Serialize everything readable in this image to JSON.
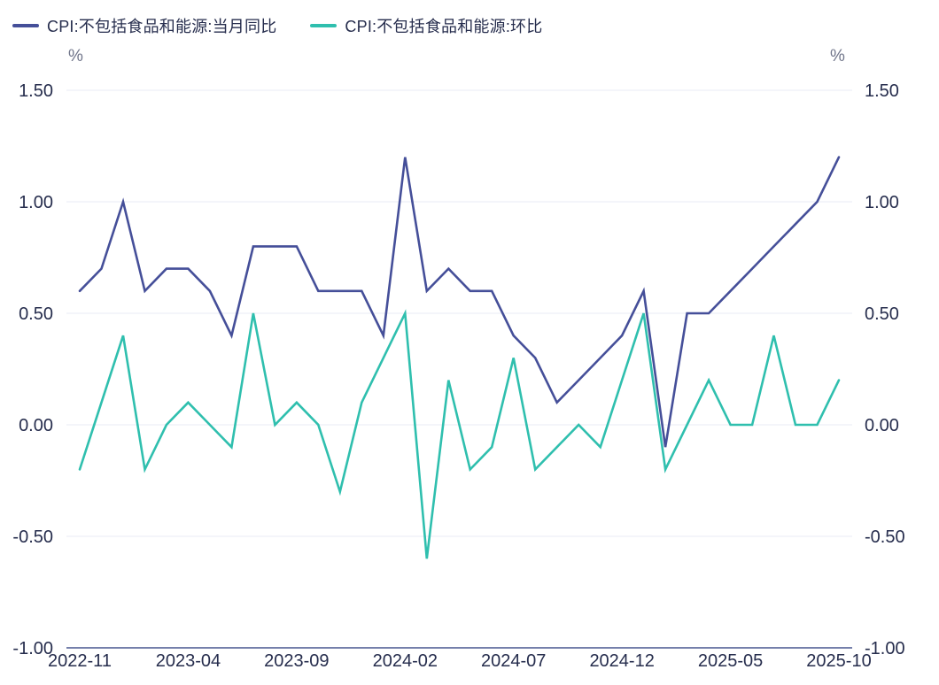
{
  "legend": {
    "items": [
      {
        "label": "CPI:不包括食品和能源:当月同比",
        "color": "#454F99"
      },
      {
        "label": "CPI:不包括食品和能源:环比",
        "color": "#2FBFAE"
      }
    ]
  },
  "y_axis": {
    "unit_left": "%",
    "unit_right": "%"
  },
  "colors": {
    "grid": "#E9EBF4",
    "axis_line": "#7580AB",
    "tick_text": "#262D4D"
  },
  "chart_data": {
    "type": "line",
    "title": "",
    "unit": "%",
    "grid": "horizontal",
    "legend_position": "top-left",
    "ylim": [
      -1.0,
      1.5
    ],
    "y_ticks": [
      1.5,
      1.0,
      0.5,
      0.0,
      -0.5,
      -1.0
    ],
    "y_tick_labels": [
      "1.50",
      "1.00",
      "0.50",
      "0.00",
      "-0.50",
      "-1.00"
    ],
    "x": [
      "2022-11",
      "2022-12",
      "2023-01",
      "2023-02",
      "2023-03",
      "2023-04",
      "2023-05",
      "2023-06",
      "2023-07",
      "2023-08",
      "2023-09",
      "2023-10",
      "2023-11",
      "2023-12",
      "2024-01",
      "2024-02",
      "2024-03",
      "2024-04",
      "2024-05",
      "2024-06",
      "2024-07",
      "2024-08",
      "2024-09",
      "2024-10",
      "2024-11",
      "2024-12",
      "2025-01",
      "2025-02",
      "2025-03",
      "2025-04",
      "2025-05",
      "2025-06",
      "2025-07",
      "2025-08",
      "2025-09",
      "2025-10"
    ],
    "x_tick_labels": [
      "2022-11",
      "2023-04",
      "2023-09",
      "2024-02",
      "2024-07",
      "2024-12",
      "2025-05",
      "2025-10"
    ],
    "series": [
      {
        "name": "CPI:不包括食品和能源:当月同比",
        "color": "#454F99",
        "values": [
          0.6,
          0.7,
          1.0,
          0.6,
          0.7,
          0.7,
          0.6,
          0.4,
          0.8,
          0.8,
          0.8,
          0.6,
          0.6,
          0.6,
          0.4,
          1.2,
          0.6,
          0.7,
          0.6,
          0.6,
          0.4,
          0.3,
          0.1,
          0.2,
          0.3,
          0.4,
          0.6,
          -0.1,
          0.5,
          0.5,
          0.6,
          0.7,
          0.8,
          0.9,
          1.0,
          1.2
        ]
      },
      {
        "name": "CPI:不包括食品和能源:环比",
        "color": "#2FBFAE",
        "values": [
          -0.2,
          0.1,
          0.4,
          -0.2,
          0.0,
          0.1,
          0.0,
          -0.1,
          0.5,
          0.0,
          0.1,
          0.0,
          -0.3,
          0.1,
          0.3,
          0.5,
          -0.6,
          0.2,
          -0.2,
          -0.1,
          0.3,
          -0.2,
          -0.1,
          0.0,
          -0.1,
          0.2,
          0.5,
          -0.2,
          0.0,
          0.2,
          0.0,
          0.0,
          0.4,
          0.0,
          0.0,
          0.2
        ]
      }
    ]
  }
}
